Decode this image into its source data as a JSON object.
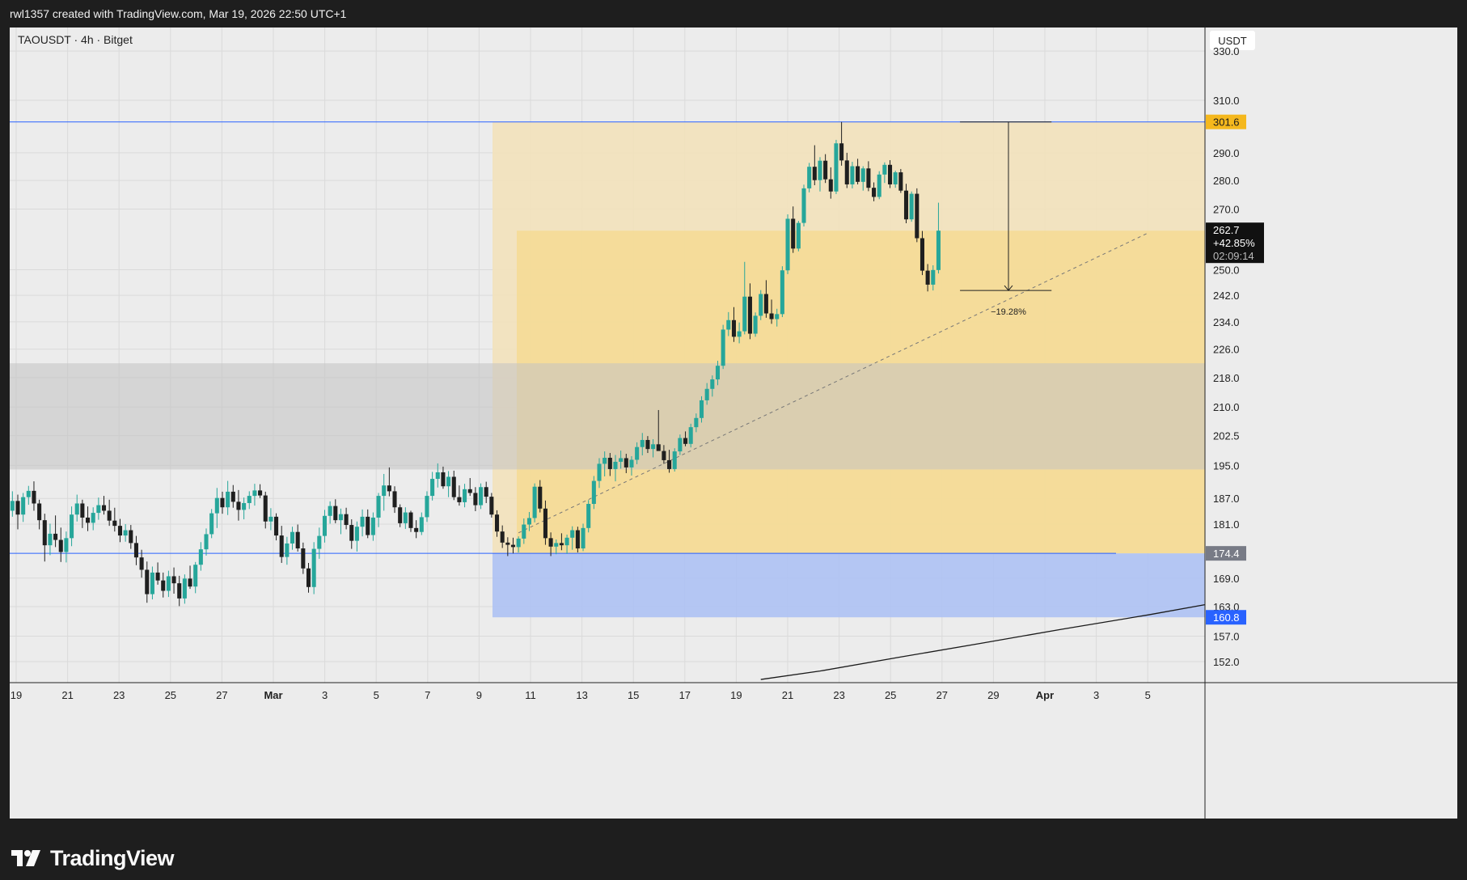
{
  "header": {
    "attribution": "rwl1357 created with TradingView.com, Mar 19, 2026 22:50 UTC+1"
  },
  "footer": {
    "brand": "TradingView"
  },
  "colors": {
    "up": "#26a69a",
    "down": "#1f1f1f",
    "zone_yellow": "#f7d98a",
    "zone_gray": "#cfcfcf",
    "zone_blue": "#aabff5",
    "line_blue": "#2962ff",
    "badge_orange": "#f5b81d",
    "badge_gray": "#787b86",
    "badge_blue": "#2962ff"
  },
  "chart_data": {
    "type": "candlestick",
    "symbol": "TAOUSDT · 4h · Bitget",
    "currency": "USDT",
    "y_scale": "log",
    "ylim": [
      148,
      340
    ],
    "y_ticks": [
      {
        "value": 330,
        "label": "330.0"
      },
      {
        "value": 310,
        "label": "310.0"
      },
      {
        "value": 290,
        "label": "290.0"
      },
      {
        "value": 280,
        "label": "280.0"
      },
      {
        "value": 270,
        "label": "270.0"
      },
      {
        "value": 250,
        "label": "250.0"
      },
      {
        "value": 242,
        "label": "242.0"
      },
      {
        "value": 234,
        "label": "234.0"
      },
      {
        "value": 226,
        "label": "226.0"
      },
      {
        "value": 218,
        "label": "218.0"
      },
      {
        "value": 210,
        "label": "210.0"
      },
      {
        "value": 202.5,
        "label": "202.5"
      },
      {
        "value": 195,
        "label": "195.0"
      },
      {
        "value": 187,
        "label": "187.0"
      },
      {
        "value": 181,
        "label": "181.0"
      },
      {
        "value": 169,
        "label": "169.0"
      },
      {
        "value": 163,
        "label": "163.0"
      },
      {
        "value": 157,
        "label": "157.0"
      },
      {
        "value": 152,
        "label": "152.0"
      }
    ],
    "x_ticks": [
      "19",
      "21",
      "23",
      "25",
      "27",
      "Mar",
      "3",
      "5",
      "7",
      "9",
      "11",
      "13",
      "15",
      "17",
      "19",
      "21",
      "23",
      "25",
      "27",
      "29",
      "Apr",
      "3",
      "5"
    ],
    "price_badges": [
      {
        "label": "301.6",
        "value": 301.6,
        "style": "orange"
      },
      {
        "label": "174.4",
        "value": 174.4,
        "style": "gray"
      },
      {
        "label": "160.8",
        "value": 160.8,
        "style": "blue"
      }
    ],
    "last_price": {
      "price": "262.7",
      "change": "+42.85%",
      "countdown": "02:09:14",
      "value": 262.7
    },
    "measure": {
      "label": "−19.28%",
      "high": 301.6,
      "low": 243.5
    },
    "zones": [
      {
        "name": "premium-zone",
        "top": 301.6,
        "bottom": 174.4,
        "color": "#f3e2b8"
      },
      {
        "name": "inner-zone",
        "top": 262.7,
        "bottom": 174.4,
        "color": "#f6d98e"
      },
      {
        "name": "gray-zone",
        "top": 222,
        "bottom": 194,
        "color": "#c2c2c2"
      },
      {
        "name": "demand-zone",
        "top": 174.4,
        "bottom": 160.8,
        "color": "#aabff5"
      }
    ],
    "horizontal_lines": [
      301.6,
      174.4
    ],
    "candles_ohlc": [
      [
        184.1,
        188.7,
        182.7,
        186.4
      ],
      [
        186.4,
        187.9,
        179.8,
        183.2
      ],
      [
        183.2,
        188.3,
        181.5,
        187.3
      ],
      [
        187.3,
        190,
        185.5,
        188.8
      ],
      [
        188.8,
        191.1,
        184.1,
        185.8
      ],
      [
        185.8,
        186.7,
        179.8,
        181.9
      ],
      [
        181.9,
        183.4,
        172.6,
        176.2
      ],
      [
        176.2,
        181.1,
        174,
        178.8
      ],
      [
        178.8,
        183,
        175.8,
        177.4
      ],
      [
        177.4,
        180.2,
        172.5,
        174.7
      ],
      [
        174.7,
        179.3,
        172.4,
        177.8
      ],
      [
        177.8,
        185.1,
        176,
        183.2
      ],
      [
        183.2,
        187.9,
        181.6,
        185.8
      ],
      [
        185.8,
        186.7,
        180.1,
        182.5
      ],
      [
        182.5,
        185.1,
        179.4,
        181.3
      ],
      [
        181.3,
        184.9,
        179.6,
        183.6
      ],
      [
        183.6,
        187.2,
        182,
        185.4
      ],
      [
        185.4,
        187.6,
        183.2,
        184.1
      ],
      [
        184.1,
        186.7,
        180.6,
        181.8
      ],
      [
        181.8,
        184.8,
        179.3,
        180.6
      ],
      [
        180.6,
        182.2,
        176.9,
        178.4
      ],
      [
        178.4,
        181,
        177,
        179.6
      ],
      [
        179.6,
        180.8,
        175.4,
        176.7
      ],
      [
        176.7,
        178.3,
        171.8,
        173.5
      ],
      [
        173.5,
        175.2,
        169.1,
        170.8
      ],
      [
        170.8,
        172.6,
        163.8,
        165.6
      ],
      [
        165.6,
        171.5,
        164.5,
        170.2
      ],
      [
        170.2,
        172.4,
        167.6,
        168.5
      ],
      [
        168.5,
        170.2,
        164.9,
        166.3
      ],
      [
        166.3,
        170.6,
        165,
        169.4
      ],
      [
        169.4,
        171.3,
        165.7,
        167.9
      ],
      [
        167.9,
        169.5,
        163.1,
        164.7
      ],
      [
        164.7,
        169.8,
        163.6,
        168.9
      ],
      [
        168.9,
        171.7,
        166.7,
        167.2
      ],
      [
        167.2,
        172.5,
        165.8,
        171.9
      ],
      [
        171.9,
        176.9,
        170.6,
        175.3
      ],
      [
        175.3,
        180,
        173.9,
        178.7
      ],
      [
        178.7,
        184.5,
        177.8,
        183.5
      ],
      [
        183.5,
        189.5,
        180.1,
        187.1
      ],
      [
        187.1,
        188.6,
        183.4,
        184.9
      ],
      [
        184.9,
        191.2,
        183.1,
        188.6
      ],
      [
        188.6,
        190.2,
        184.8,
        186.2
      ],
      [
        186.2,
        189,
        181.8,
        184.3
      ],
      [
        184.3,
        187.2,
        182.1,
        185.9
      ],
      [
        185.9,
        188.7,
        184.5,
        187.6
      ],
      [
        187.6,
        190.5,
        185.3,
        188.9
      ],
      [
        188.9,
        190.4,
        187.1,
        187.7
      ],
      [
        187.7,
        188.6,
        180,
        181.6
      ],
      [
        181.6,
        184.7,
        179.6,
        182.7
      ],
      [
        182.7,
        183.5,
        177.3,
        178.4
      ],
      [
        178.4,
        180.6,
        172.3,
        173.6
      ],
      [
        173.6,
        178.1,
        171.9,
        176.6
      ],
      [
        176.6,
        180.4,
        175.2,
        179.2
      ],
      [
        179.2,
        180.9,
        174.8,
        175.5
      ],
      [
        175.5,
        176.8,
        169.9,
        171.1
      ],
      [
        171.1,
        172.3,
        165.9,
        167.1
      ],
      [
        167.1,
        176.9,
        165.6,
        175.4
      ],
      [
        175.4,
        180.2,
        173.2,
        178.3
      ],
      [
        178.3,
        184.3,
        176.8,
        182.9
      ],
      [
        182.9,
        186.3,
        181.1,
        185.2
      ],
      [
        185.2,
        186.8,
        181.2,
        181.9
      ],
      [
        181.9,
        184.6,
        178.7,
        183.3
      ],
      [
        183.3,
        184.8,
        179.8,
        180.8
      ],
      [
        180.8,
        182.1,
        175.4,
        177.2
      ],
      [
        177.2,
        181.6,
        174.8,
        180.4
      ],
      [
        180.4,
        184.4,
        178.2,
        182.7
      ],
      [
        182.7,
        184.4,
        177.8,
        178.5
      ],
      [
        178.5,
        183.7,
        177.2,
        182.5
      ],
      [
        182.5,
        188.3,
        180.3,
        187.6
      ],
      [
        187.6,
        192.9,
        184.1,
        190.1
      ],
      [
        190.1,
        194.5,
        187.5,
        188.7
      ],
      [
        188.7,
        189.9,
        183.6,
        184.9
      ],
      [
        184.9,
        185.6,
        180.3,
        181.2
      ],
      [
        181.2,
        184.9,
        179.9,
        183.7
      ],
      [
        183.7,
        184.1,
        179.2,
        180.1
      ],
      [
        180.1,
        181.9,
        177.8,
        179.2
      ],
      [
        179.2,
        183.7,
        178.5,
        182.6
      ],
      [
        182.6,
        188.7,
        181.5,
        187.6
      ],
      [
        187.6,
        193.4,
        186.5,
        191.7
      ],
      [
        191.7,
        195.5,
        189.6,
        193.3
      ],
      [
        193.3,
        194.7,
        189.3,
        189.9
      ],
      [
        189.9,
        193.6,
        187.3,
        192.2
      ],
      [
        192.2,
        193.7,
        186.6,
        187.3
      ],
      [
        187.3,
        190.1,
        185.3,
        186.1
      ],
      [
        186.1,
        190.5,
        184.9,
        189.2
      ],
      [
        189.2,
        191.9,
        187.6,
        188.3
      ],
      [
        188.3,
        189.7,
        184,
        185.4
      ],
      [
        185.4,
        190.6,
        184.5,
        189.7
      ],
      [
        189.7,
        191,
        185.9,
        187.4
      ],
      [
        187.4,
        188.3,
        182.5,
        183.2
      ],
      [
        183.2,
        184.2,
        178.1,
        179.3
      ],
      [
        179.3,
        180.7,
        175.6,
        176.8
      ],
      [
        176.8,
        178,
        173.8,
        176.3
      ],
      [
        176.3,
        177.9,
        174.4,
        175.8
      ],
      [
        175.8,
        178.2,
        174.6,
        177.7
      ],
      [
        177.7,
        182.3,
        176.5,
        180.9
      ],
      [
        180.9,
        183.8,
        179.4,
        182.4
      ],
      [
        182.4,
        190.6,
        181.4,
        189.8
      ],
      [
        189.8,
        191.4,
        183.7,
        184.6
      ],
      [
        184.6,
        186.5,
        176.3,
        177.8
      ],
      [
        177.8,
        179.1,
        173.8,
        175.9
      ],
      [
        175.9,
        177.5,
        174.2,
        176.7
      ],
      [
        176.7,
        178.9,
        175.1,
        176.2
      ],
      [
        176.2,
        178.6,
        174.3,
        177.9
      ],
      [
        177.9,
        180.5,
        175.2,
        179.6
      ],
      [
        179.6,
        180.4,
        174.6,
        175.5
      ],
      [
        175.5,
        181.1,
        174.9,
        180.1
      ],
      [
        180.1,
        186.6,
        179.1,
        185.7
      ],
      [
        185.7,
        192.4,
        184.5,
        191.2
      ],
      [
        191.2,
        196.8,
        189.5,
        195.4
      ],
      [
        195.4,
        198.5,
        192.3,
        196.9
      ],
      [
        196.9,
        198.1,
        192.4,
        194.1
      ],
      [
        194.1,
        197.6,
        191.1,
        195.9
      ],
      [
        195.9,
        198.7,
        194.2,
        196.8
      ],
      [
        196.8,
        197.9,
        193.1,
        194.5
      ],
      [
        194.5,
        197.3,
        192.5,
        196.4
      ],
      [
        196.4,
        200.8,
        195.3,
        199.6
      ],
      [
        199.6,
        203.2,
        197.5,
        201.4
      ],
      [
        201.4,
        202.4,
        198.1,
        199.1
      ],
      [
        199.1,
        201.6,
        197,
        200.3
      ],
      [
        200.3,
        209.2,
        198.8,
        198.6
      ],
      [
        198.6,
        200.1,
        195.4,
        196.3
      ],
      [
        196.3,
        198.9,
        193.2,
        194.1
      ],
      [
        194.1,
        199.3,
        193.5,
        198.5
      ],
      [
        198.5,
        202.8,
        197.6,
        201.9
      ],
      [
        201.9,
        203.6,
        199.8,
        200.4
      ],
      [
        200.4,
        205.6,
        199.5,
        204.7
      ],
      [
        204.7,
        208.3,
        203.4,
        207.1
      ],
      [
        207.1,
        212.9,
        205.9,
        211.8
      ],
      [
        211.8,
        216.5,
        210.6,
        214.9
      ],
      [
        214.9,
        218.6,
        212.8,
        217.5
      ],
      [
        217.5,
        222.7,
        215.9,
        221.3
      ],
      [
        221.3,
        233.1,
        220.4,
        231.7
      ],
      [
        231.7,
        236.9,
        229.8,
        234.5
      ],
      [
        234.5,
        238.4,
        228.1,
        229.6
      ],
      [
        229.6,
        233.8,
        227.7,
        231.2
      ],
      [
        231.2,
        252.5,
        230.3,
        241.6
      ],
      [
        241.6,
        245.7,
        228.9,
        230.5
      ],
      [
        230.5,
        236.8,
        229.6,
        235.8
      ],
      [
        235.8,
        243.6,
        234.5,
        242.4
      ],
      [
        242.4,
        246.7,
        235.2,
        236.5
      ],
      [
        236.5,
        240.7,
        233.4,
        234.8
      ],
      [
        234.8,
        237.9,
        232.6,
        236.3
      ],
      [
        236.3,
        251.1,
        235.4,
        249.8
      ],
      [
        249.8,
        268.2,
        248.6,
        266.7
      ],
      [
        266.7,
        270.9,
        255.4,
        256.8
      ],
      [
        256.8,
        266,
        255.9,
        265.3
      ],
      [
        265.3,
        278.5,
        264.1,
        277.2
      ],
      [
        277.2,
        286.3,
        275.8,
        284.9
      ],
      [
        284.9,
        292.8,
        278.3,
        280.1
      ],
      [
        280.1,
        288.4,
        276.1,
        287.1
      ],
      [
        287.1,
        289.5,
        279.1,
        280.4
      ],
      [
        280.4,
        284.7,
        273.6,
        276.1
      ],
      [
        276.1,
        294.8,
        275.2,
        293.5
      ],
      [
        293.5,
        301.6,
        285.3,
        287.2
      ],
      [
        287.2,
        290,
        277.3,
        278.6
      ],
      [
        278.6,
        286.7,
        277.2,
        285.1
      ],
      [
        285.1,
        287.8,
        278.6,
        279.5
      ],
      [
        279.5,
        285.1,
        276.4,
        284.3
      ],
      [
        284.3,
        286.9,
        276.2,
        277.4
      ],
      [
        277.4,
        279.3,
        272.7,
        274.2
      ],
      [
        274.2,
        283.3,
        273.4,
        282.1
      ],
      [
        282.1,
        286.5,
        279.1,
        285.6
      ],
      [
        285.6,
        287.3,
        277.3,
        278.6
      ],
      [
        278.6,
        283.5,
        277.4,
        282.9
      ],
      [
        282.9,
        284.1,
        275.6,
        276.4
      ],
      [
        276.4,
        278.8,
        265.2,
        266.5
      ],
      [
        266.5,
        276.1,
        265.7,
        275.3
      ],
      [
        275.3,
        277.2,
        258.9,
        260.2
      ],
      [
        260.2,
        262.6,
        248.3,
        249.7
      ],
      [
        249.7,
        251.8,
        243.2,
        245.3
      ],
      [
        245.3,
        251.4,
        243.5,
        249.9
      ],
      [
        249.9,
        272.2,
        248.8,
        262.7
      ]
    ],
    "ma_curve": [
      {
        "t": 139,
        "v": 148.6
      },
      {
        "t": 150,
        "v": 150.2
      },
      {
        "t": 165,
        "v": 152.9
      },
      {
        "t": 180,
        "v": 155.6
      },
      {
        "t": 195,
        "v": 158.4
      },
      {
        "t": 211,
        "v": 161.3
      },
      {
        "t": 222,
        "v": 163.5
      }
    ],
    "x_total_bars": 222
  }
}
